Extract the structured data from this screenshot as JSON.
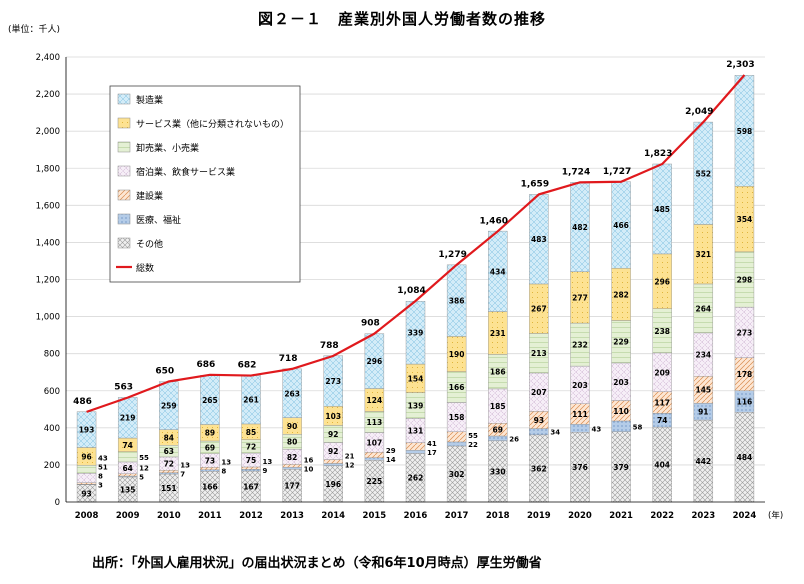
{
  "title": "図２－１　産業別外国人労働者数の推移",
  "unit_label": "(単位：千人)",
  "source": "出所：「外国人雇用状況」の届出状況まとめ（令和6年10月時点）厚生労働省",
  "colors": {
    "manufacturing": "#cfeaf7",
    "services_other": "#fde39a",
    "wholesale_retail": "#e3efd2",
    "lodging_food": "#f0e4f2",
    "construction": "#fbe2cc",
    "medical_welfare": "#a9c4e4",
    "other": "#e6e6e6",
    "total_line": "#e0191d",
    "axis": "#000000",
    "grid": "#d9d9d9"
  },
  "chart_data": {
    "type": "bar",
    "stacked": true,
    "x_unit": "(年)",
    "categories": [
      "2008",
      "2009",
      "2010",
      "2011",
      "2012",
      "2013",
      "2014",
      "2015",
      "2016",
      "2017",
      "2018",
      "2019",
      "2020",
      "2021",
      "2022",
      "2023",
      "2024"
    ],
    "ylim": [
      0,
      2400
    ],
    "yticks": [
      "0",
      "200",
      "400",
      "600",
      "800",
      "1,000",
      "1,200",
      "1,400",
      "1,600",
      "1,800",
      "2,000",
      "2,200",
      "2,400"
    ],
    "grid": true,
    "legend_position": "top-left",
    "series": [
      {
        "name": "その他",
        "key": "other",
        "values": [
          93,
          135,
          151,
          166,
          167,
          177,
          196,
          225,
          262,
          302,
          330,
          362,
          376,
          379,
          404,
          442,
          484
        ]
      },
      {
        "name": "医療、福祉",
        "key": "medical_welfare",
        "values": [
          3,
          5,
          7,
          8,
          9,
          10,
          12,
          14,
          17,
          22,
          26,
          34,
          43,
          58,
          74,
          91,
          116
        ]
      },
      {
        "name": "建設業",
        "key": "construction",
        "values": [
          8,
          12,
          13,
          13,
          13,
          16,
          21,
          29,
          41,
          55,
          69,
          93,
          111,
          110,
          117,
          145,
          178
        ]
      },
      {
        "name": "宿泊業、飲食サービス業",
        "key": "lodging_food",
        "values": [
          51,
          64,
          72,
          73,
          75,
          82,
          92,
          107,
          131,
          158,
          185,
          207,
          203,
          203,
          209,
          234,
          273
        ]
      },
      {
        "name": "卸売業、小売業",
        "key": "wholesale_retail",
        "values": [
          43,
          55,
          63,
          69,
          72,
          80,
          92,
          113,
          139,
          166,
          186,
          213,
          232,
          229,
          238,
          264,
          298
        ]
      },
      {
        "name": "サービス業（他に分類されないもの）",
        "key": "services_other",
        "values": [
          96,
          74,
          84,
          89,
          85,
          90,
          103,
          124,
          154,
          190,
          231,
          267,
          277,
          282,
          296,
          321,
          354
        ]
      },
      {
        "name": "製造業",
        "key": "manufacturing",
        "values": [
          193,
          219,
          259,
          265,
          261,
          263,
          273,
          296,
          339,
          386,
          434,
          483,
          482,
          466,
          485,
          552,
          598
        ]
      }
    ],
    "total": {
      "name": "総数",
      "values": [
        486,
        563,
        650,
        686,
        682,
        718,
        788,
        908,
        1084,
        1279,
        1460,
        1659,
        1724,
        1727,
        1823,
        2049,
        2303
      ],
      "labels": [
        "486",
        "563",
        "650",
        "686",
        "682",
        "718",
        "788",
        "908",
        "1,084",
        "1,279",
        "1,460",
        "1,659",
        "1,724",
        "1,727",
        "1,823",
        "2,049",
        "2,303"
      ]
    },
    "legend_order": [
      "製造業",
      "サービス業（他に分類されないもの）",
      "卸売業、小売業",
      "宿泊業、飲食サービス業",
      "建設業",
      "医療、福祉",
      "その他",
      "総数"
    ]
  }
}
